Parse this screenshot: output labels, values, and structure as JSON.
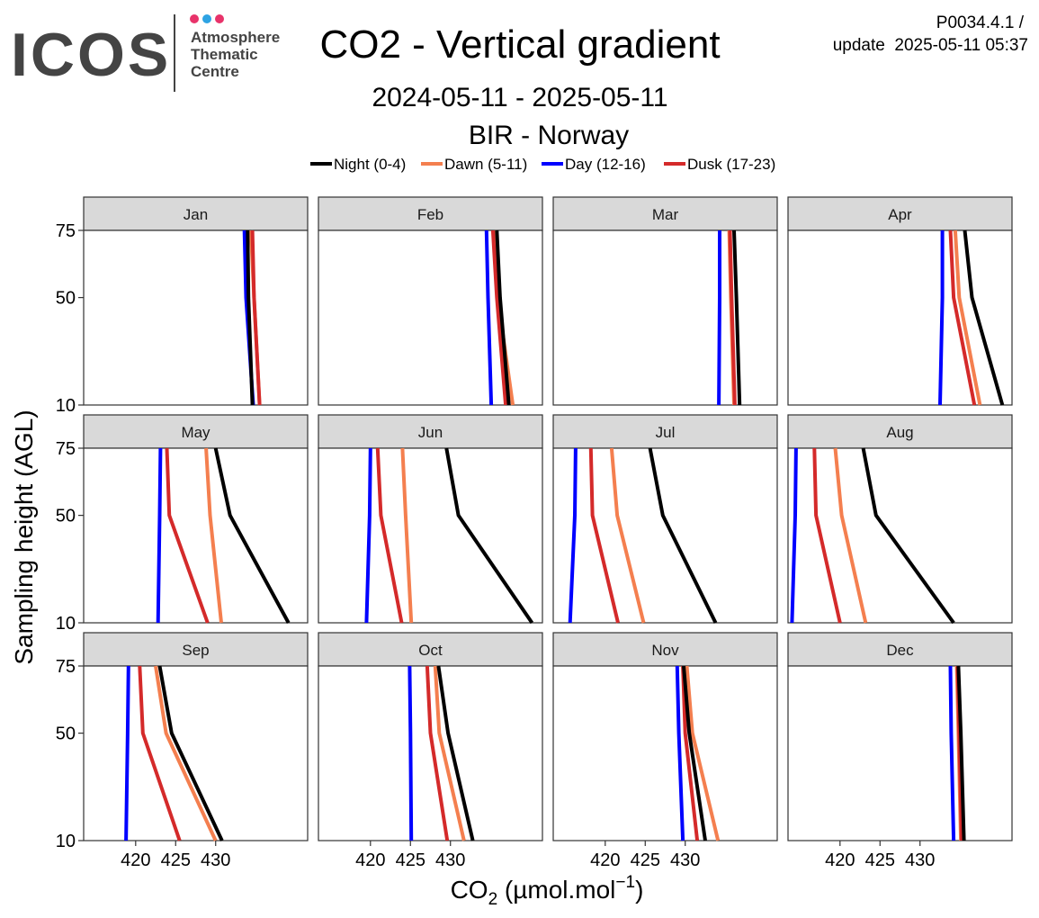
{
  "header": {
    "logo_text": "ICOS",
    "logo_subtitle": [
      "Atmosphere",
      "Thematic",
      "Centre"
    ],
    "version": "P0034.4.1 /",
    "update": "update  2025-05-11 05:37"
  },
  "colors": {
    "strip_bg": "#d9d9d9",
    "logo_gray": "#444444",
    "logo_pink": "#e8336a",
    "logo_blue": "#2ea3e3"
  },
  "chart_data": {
    "type": "line",
    "title": "CO2 - Vertical gradient",
    "subtitle": "2024-05-11 - 2025-05-11",
    "station": "BIR - Norway",
    "xlabel": "CO2 (µmol.mol-1)",
    "ylabel": "Sampling height (AGL)",
    "xlim": [
      413.5,
      441.5
    ],
    "ylim": [
      10,
      75
    ],
    "x_ticks": [
      420,
      425,
      430
    ],
    "y_ticks": [
      10,
      50,
      75
    ],
    "grid": false,
    "legend_position": "top",
    "heights": [
      10,
      50,
      75
    ],
    "series": [
      {
        "name": "Night (0-4)",
        "color": "#000000"
      },
      {
        "name": "Dawn (5-11)",
        "color": "#f47f4f"
      },
      {
        "name": "Day (12-16)",
        "color": "#0000ff"
      },
      {
        "name": "Dusk (17-23)",
        "color": "#d42a2a"
      }
    ],
    "panels": [
      {
        "month": "Jan",
        "night": [
          434.6,
          434.1,
          434.0
        ],
        "dawn": [
          435.5,
          434.8,
          434.4
        ],
        "day": [
          434.7,
          433.8,
          433.6
        ],
        "dusk": [
          435.5,
          434.8,
          434.6
        ]
      },
      {
        "month": "Feb",
        "night": [
          437.3,
          436.2,
          435.8
        ],
        "dawn": [
          437.8,
          435.9,
          435.5
        ],
        "day": [
          435.1,
          434.7,
          434.5
        ],
        "dusk": [
          436.9,
          435.8,
          435.3
        ]
      },
      {
        "month": "Mar",
        "night": [
          436.8,
          436.4,
          436.1
        ],
        "dawn": [
          436.1,
          435.7,
          435.5
        ],
        "day": [
          434.2,
          434.3,
          434.3
        ],
        "dusk": [
          436.2,
          435.8,
          435.6
        ]
      },
      {
        "month": "Apr",
        "night": [
          440.3,
          436.5,
          435.6
        ],
        "dawn": [
          437.5,
          434.9,
          434.4
        ],
        "day": [
          432.5,
          432.8,
          432.8
        ],
        "dusk": [
          436.8,
          434.2,
          433.8
        ]
      },
      {
        "month": "May",
        "night": [
          439.1,
          431.8,
          430.0
        ],
        "dawn": [
          430.7,
          429.3,
          428.8
        ],
        "day": [
          422.8,
          423.0,
          423.1
        ],
        "dusk": [
          429.0,
          424.2,
          423.9
        ]
      },
      {
        "month": "Jun",
        "night": [
          440.2,
          431.0,
          429.5
        ],
        "dawn": [
          425.1,
          424.4,
          424.0
        ],
        "day": [
          419.5,
          419.9,
          420.0
        ],
        "dusk": [
          423.9,
          421.3,
          420.9
        ]
      },
      {
        "month": "Jul",
        "night": [
          433.8,
          427.2,
          425.6
        ],
        "dawn": [
          424.8,
          421.5,
          420.8
        ],
        "day": [
          415.6,
          416.2,
          416.3
        ],
        "dusk": [
          421.6,
          418.4,
          418.2
        ]
      },
      {
        "month": "Aug",
        "night": [
          434.2,
          424.5,
          422.9
        ],
        "dawn": [
          423.2,
          420.2,
          419.4
        ],
        "day": [
          414.0,
          414.4,
          414.5
        ],
        "dusk": [
          420.0,
          417.0,
          416.8
        ]
      },
      {
        "month": "Sep",
        "night": [
          430.8,
          424.5,
          423.0
        ],
        "dawn": [
          430.0,
          423.8,
          422.5
        ],
        "day": [
          418.8,
          419.0,
          419.1
        ],
        "dusk": [
          425.5,
          420.9,
          420.5
        ]
      },
      {
        "month": "Oct",
        "night": [
          432.8,
          429.7,
          428.5
        ],
        "dawn": [
          431.7,
          428.6,
          428.1
        ],
        "day": [
          425.1,
          425.0,
          424.9
        ],
        "dusk": [
          429.6,
          427.5,
          427.1
        ]
      },
      {
        "month": "Nov",
        "night": [
          432.5,
          430.5,
          429.8
        ],
        "dawn": [
          434.1,
          430.9,
          430.2
        ],
        "day": [
          429.7,
          429.2,
          429.0
        ],
        "dusk": [
          431.5,
          430.0,
          429.7
        ]
      },
      {
        "month": "Dec",
        "night": [
          435.5,
          435.1,
          434.8
        ],
        "dawn": [
          435.1,
          434.8,
          434.6
        ],
        "day": [
          434.2,
          433.9,
          433.8
        ],
        "dusk": [
          435.2,
          434.9,
          434.7
        ]
      }
    ]
  }
}
